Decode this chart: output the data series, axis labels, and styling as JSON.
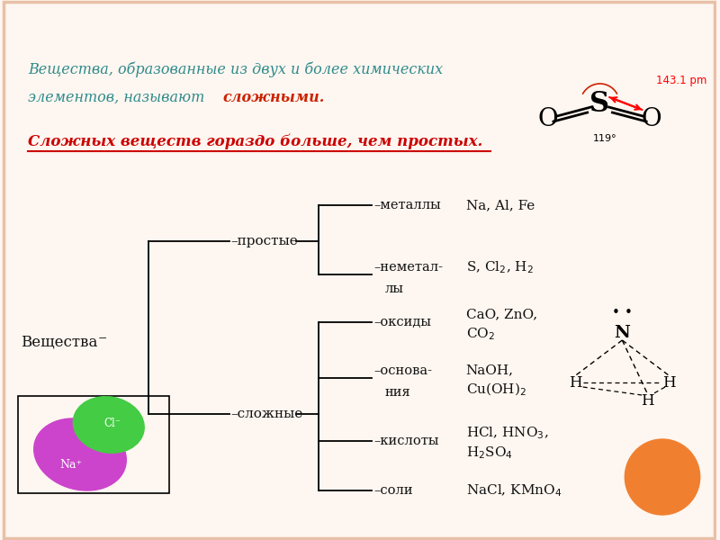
{
  "bg_color": "#fef6f0",
  "title_color": "#2e8b8b",
  "subtitle_color": "#cc0000",
  "text_color": "#111111",
  "border_color": "#e8c0a8",
  "title_line1": "Вещества, образованные из двух и более химических",
  "title_line2_plain": "элементов, называют ",
  "title_line2_bold": "сложными",
  "title_line2_end": ".",
  "subtitle": "Сложных веществ гораздо больше, чем простых.",
  "root_label": "Вещества",
  "branch_prostye": "простые",
  "branch_slozhnye": "сложные",
  "leaf_labels": [
    "металлы",
    "неметал-\nлы",
    "оксиды",
    "основа-\nния",
    "кислоты",
    "соли"
  ],
  "example_texts": [
    "Na, Al, Fe",
    "S, Cl$_2$, H$_2$",
    "CaO, ZnO,\nCO$_2$",
    "NaOH,\nCu(OH)$_2$",
    "HCl, HNO$_3$,\nH$_2$SO$_4$",
    "NaCl, KMnO$_4$"
  ],
  "so2_label": "143.1 pm",
  "so2_angle": "119°",
  "na_color": "#cc44cc",
  "cl_color": "#44cc44",
  "orange_color": "#f08030"
}
